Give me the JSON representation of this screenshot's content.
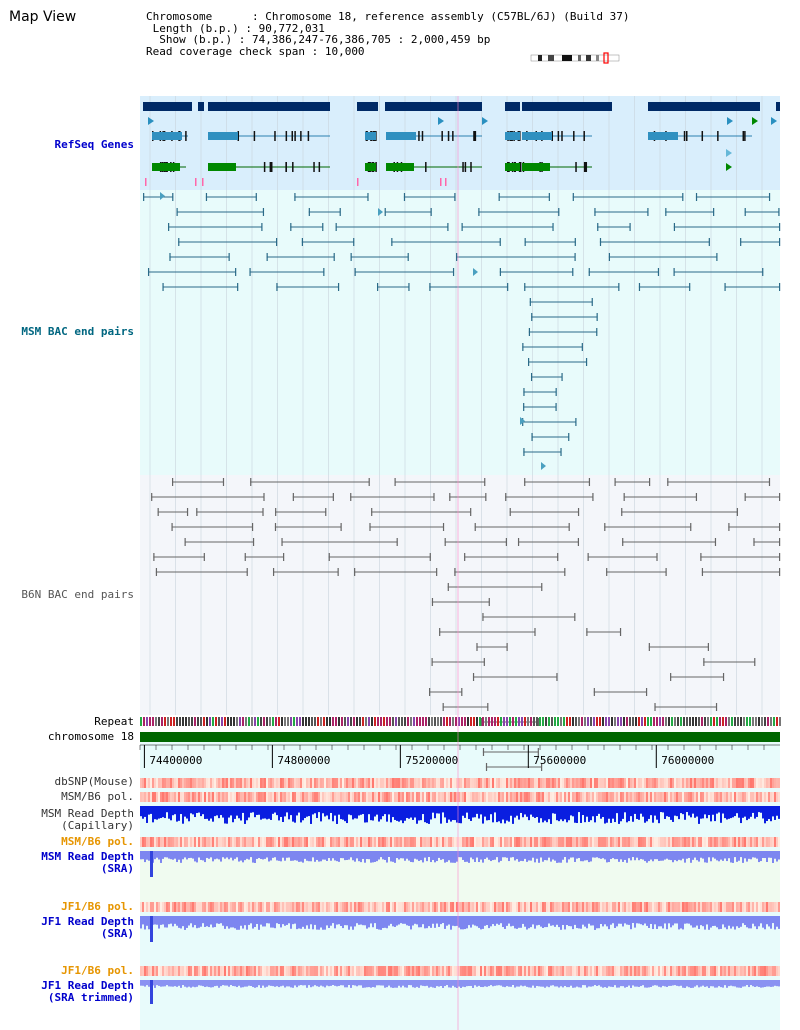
{
  "header": {
    "title": "Map View",
    "info": [
      {
        "label": "Chromosome      ",
        "value": ": Chromosome 18, reference assembly (C57BL/6J) (Build 37)"
      },
      {
        "label": " Length (b.p.) ",
        "value": ": 90,772,031"
      },
      {
        "label": "  Show (b.p.) ",
        "value": ": 74,386,247-76,386,705 : 2,000,459 bp"
      },
      {
        "label": "Read coverage check span ",
        "value": ": 10,000"
      }
    ]
  },
  "tracks": {
    "refseq": {
      "label": "RefSeq Genes",
      "color": "#0000cc",
      "bg": "#d9eefc"
    },
    "msm_bac": {
      "label": "MSM BAC end pairs",
      "color": "#006680",
      "bg": "#e8fbfb"
    },
    "b6n_bac": {
      "label": "B6N BAC end pairs",
      "color": "#555555",
      "bg": "#f4f6fa"
    },
    "repeat": {
      "label": "Repeat"
    },
    "chromosome": {
      "label": "chromosome 18",
      "color": "#006600"
    },
    "dbsnp": {
      "label": "dbSNP(Mouse)"
    },
    "msm_b6_pol": {
      "label": "MSM/B6 pol."
    },
    "msm_depth_cap": {
      "label1": "MSM Read Depth",
      "label2": "(Capillary)"
    },
    "msm_b6_pol2": {
      "label": "MSM/B6 pol.",
      "color": "#e69500"
    },
    "msm_depth_sra": {
      "label1": "MSM Read Depth",
      "label2": "(SRA)",
      "color": "#0000cc"
    },
    "jf1_b6_pol": {
      "label": "JF1/B6 pol.",
      "color": "#e69500"
    },
    "jf1_depth_sra": {
      "label1": "JF1 Read Depth",
      "label2": "(SRA)",
      "color": "#0000cc"
    },
    "jf1_b6_pol2": {
      "label": "JF1/B6 pol.",
      "color": "#e69500"
    },
    "jf1_depth_trim": {
      "label1": "JF1 Read Depth",
      "label2": "(SRA trimmed)",
      "color": "#0000cc"
    }
  },
  "axis": {
    "ticks": [
      {
        "pos": 74400000,
        "label": "74400000"
      },
      {
        "pos": 74800000,
        "label": "74800000"
      },
      {
        "pos": 75200000,
        "label": "75200000"
      },
      {
        "pos": 75600000,
        "label": "75600000"
      },
      {
        "pos": 76000000,
        "label": "76000000"
      }
    ],
    "start": 74386247,
    "end": 76386705
  }
}
